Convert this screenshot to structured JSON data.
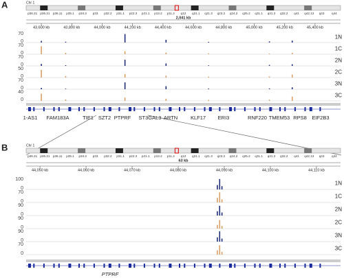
{
  "panels": [
    {
      "label": "A",
      "chromosome": "Chr 1",
      "span": "2,041 kb",
      "bands": [
        "p36.31",
        "p36.21",
        "p36.11",
        "p35.1",
        "p34.2",
        "p33",
        "p32.2",
        "p31.1",
        "p22.3",
        "p21.1",
        "p13.2",
        "p11.2",
        "q12",
        "q21.1",
        "q21.3",
        "q23.2",
        "q24.2",
        "q25.2",
        "q31.1",
        "q31.3",
        "q32.2",
        "q41",
        "q42.13",
        "q43",
        "q44"
      ],
      "xlim": [
        43500,
        45500
      ],
      "xticks": [
        {
          "value": 43600,
          "label": "43,600 kb"
        },
        {
          "value": 43800,
          "label": "43,800 kb"
        },
        {
          "value": 44000,
          "label": "44,000 kb"
        },
        {
          "value": 44200,
          "label": "44,200 kb"
        },
        {
          "value": 44400,
          "label": "44,400 kb"
        },
        {
          "value": 44600,
          "label": "44,600 kb"
        },
        {
          "value": 44800,
          "label": "44,800 kb"
        },
        {
          "value": 45000,
          "label": "45,000 kb"
        },
        {
          "value": 45200,
          "label": "45,200 kb"
        },
        {
          "value": 45400,
          "label": "45,400 kb"
        }
      ],
      "tracks": [
        {
          "name": "1N",
          "color": "#1f2d7a",
          "ylim": [
            0,
            70
          ],
          "x": [
            43600,
            43760,
            44150,
            44420,
            44700,
            45100,
            45250
          ],
          "values": [
            12,
            6,
            62,
            20,
            5,
            8,
            14
          ]
        },
        {
          "name": "1C",
          "color": "#d9a066",
          "ylim": [
            0,
            70
          ],
          "x": [
            43600,
            43760,
            44150,
            44420,
            44700,
            45100,
            45250
          ],
          "values": [
            58,
            10,
            22,
            12,
            6,
            5,
            10
          ]
        },
        {
          "name": "2N",
          "color": "#1f2d7a",
          "ylim": [
            0,
            70
          ],
          "x": [
            43600,
            43760,
            44150,
            44420,
            44700,
            45100,
            45250
          ],
          "values": [
            14,
            5,
            45,
            18,
            4,
            7,
            12
          ]
        },
        {
          "name": "2C",
          "color": "#d9a066",
          "ylim": [
            0,
            50
          ],
          "x": [
            43600,
            43760,
            44150,
            44420,
            44700,
            45100,
            45250
          ],
          "values": [
            40,
            8,
            18,
            10,
            5,
            6,
            16
          ]
        },
        {
          "name": "3N",
          "color": "#1f2d7a",
          "ylim": [
            0,
            70
          ],
          "x": [
            43600,
            43760,
            44150,
            44420,
            44700,
            45100,
            45250
          ],
          "values": [
            10,
            4,
            50,
            22,
            5,
            6,
            14
          ]
        },
        {
          "name": "3C",
          "color": "#d9a066",
          "ylim": [
            0,
            40
          ],
          "x": [
            43600,
            43760,
            44150,
            44420,
            44700,
            45100,
            45250
          ],
          "values": [
            30,
            6,
            14,
            9,
            4,
            5,
            18
          ]
        }
      ],
      "genes": [
        "1-AS1",
        "FAM183A",
        "TIE1",
        "SZT2",
        "PTPRF",
        "ST3GAL3",
        "ARTN",
        "KLF17",
        "ERI3",
        "RNF220",
        "TMEM53",
        "RPS8",
        "EIF2B3"
      ]
    },
    {
      "label": "B",
      "chromosome": "Chr 1",
      "span": "63 kb",
      "bands": [
        "p36.31",
        "p36.21",
        "p36.11",
        "p35.1",
        "p34.2",
        "p33",
        "p32.2",
        "p31.1",
        "p22.3",
        "p21.1",
        "p13.2",
        "p11.2",
        "q12",
        "q21.1",
        "q21.3",
        "q23.2",
        "q24.2",
        "q25.2",
        "q31.1",
        "q31.3",
        "q32.2",
        "q41",
        "q42.13",
        "q43",
        "q44"
      ],
      "xlim": [
        44047,
        44113
      ],
      "xticks": [
        {
          "value": 44050,
          "label": "44,050 kb"
        },
        {
          "value": 44060,
          "label": "44,060 kb"
        },
        {
          "value": 44070,
          "label": "44,070 kb"
        },
        {
          "value": 44080,
          "label": "44,080 kb"
        },
        {
          "value": 44090,
          "label": "44,090 kb"
        },
        {
          "value": 44100,
          "label": "44,100 kb"
        },
        {
          "value": 44110,
          "label": "44,110 kb"
        }
      ],
      "tracks": [
        {
          "name": "1N",
          "color": "#1f2d7a",
          "ylim": [
            0,
            100
          ],
          "x": [
            44088.5,
            44089,
            44089.5
          ],
          "values": [
            40,
            95,
            30
          ]
        },
        {
          "name": "1C",
          "color": "#d9a066",
          "ylim": [
            0,
            70
          ],
          "x": [
            44088.5,
            44089,
            44089.5
          ],
          "values": [
            30,
            65,
            20
          ]
        },
        {
          "name": "2N",
          "color": "#1f2d7a",
          "ylim": [
            0,
            90
          ],
          "x": [
            44088.5,
            44089,
            44089.5
          ],
          "values": [
            35,
            80,
            25
          ]
        },
        {
          "name": "2C",
          "color": "#d9a066",
          "ylim": [
            0,
            90
          ],
          "x": [
            44088.5,
            44089,
            44089.5
          ],
          "values": [
            30,
            70,
            22
          ]
        },
        {
          "name": "3N",
          "color": "#1f2d7a",
          "ylim": [
            0,
            90
          ],
          "x": [
            44088.5,
            44089,
            44089.5
          ],
          "values": [
            35,
            85,
            25
          ]
        },
        {
          "name": "3C",
          "color": "#d9a066",
          "ylim": [
            0,
            70
          ],
          "x": [
            44088.5,
            44089,
            44089.5
          ],
          "values": [
            28,
            60,
            18
          ]
        }
      ],
      "genes": [
        "PTPRF"
      ]
    }
  ]
}
